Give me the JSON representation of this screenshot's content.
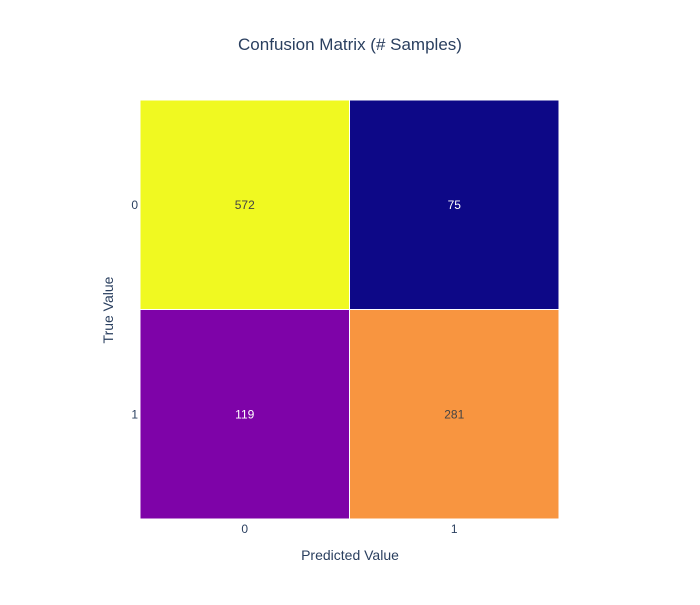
{
  "chart_data": {
    "type": "heatmap",
    "title": "Confusion Matrix (# Samples)",
    "xlabel": "Predicted Value",
    "ylabel": "True Value",
    "x_categories": [
      "0",
      "1"
    ],
    "y_categories": [
      "0",
      "1"
    ],
    "z": [
      [
        572,
        75
      ],
      [
        119,
        281
      ]
    ],
    "cell_colors": [
      [
        "#f0f921",
        "#0d0887"
      ],
      [
        "#7e03a8",
        "#f89540"
      ]
    ],
    "cell_text_colors": [
      [
        "#444444",
        "#ffffff"
      ],
      [
        "#ffffff",
        "#444444"
      ]
    ],
    "colorscale": "plasma",
    "legend": "none"
  }
}
